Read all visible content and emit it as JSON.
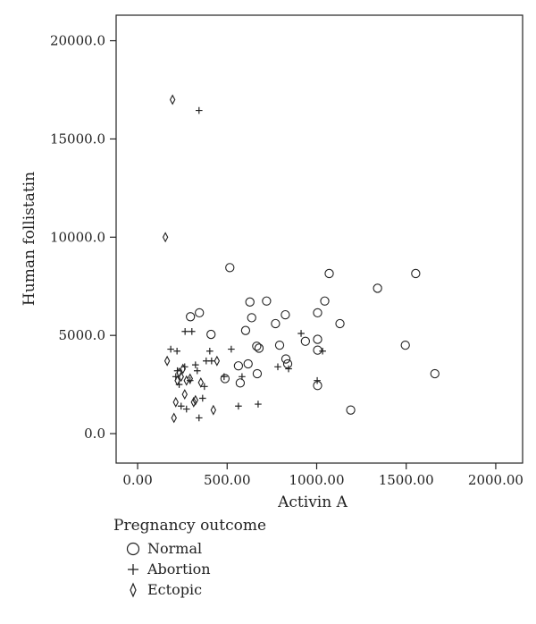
{
  "chart_data": {
    "type": "scatter",
    "xlabel": "Activin A",
    "ylabel": "Human follistatin",
    "xlim": [
      -120,
      2150
    ],
    "ylim": [
      -1500,
      21300
    ],
    "x_ticks": [
      {
        "value": 0,
        "label": "0.00"
      },
      {
        "value": 500,
        "label": "500.00"
      },
      {
        "value": 1000,
        "label": "1000.00"
      },
      {
        "value": 1500,
        "label": "1500.00"
      },
      {
        "value": 2000,
        "label": "2000.00"
      }
    ],
    "y_ticks": [
      {
        "value": 0,
        "label": "0.0"
      },
      {
        "value": 5000,
        "label": "5000.0"
      },
      {
        "value": 10000,
        "label": "10000.0"
      },
      {
        "value": 15000,
        "label": "15000.0"
      },
      {
        "value": 20000,
        "label": "20000.0"
      }
    ],
    "grid": false,
    "legend": {
      "title": "Pregnancy outcome",
      "position": "bottom-left"
    },
    "series": [
      {
        "name": "Normal",
        "marker": "circle",
        "points": [
          [
            295,
            5950
          ],
          [
            345,
            6150
          ],
          [
            410,
            5050
          ],
          [
            488,
            2800
          ],
          [
            515,
            8450
          ],
          [
            563,
            3450
          ],
          [
            573,
            2580
          ],
          [
            603,
            5250
          ],
          [
            617,
            3550
          ],
          [
            627,
            6700
          ],
          [
            637,
            5900
          ],
          [
            665,
            4450
          ],
          [
            668,
            3050
          ],
          [
            678,
            4350
          ],
          [
            720,
            6750
          ],
          [
            770,
            5600
          ],
          [
            793,
            4500
          ],
          [
            825,
            6050
          ],
          [
            828,
            3800
          ],
          [
            838,
            3550
          ],
          [
            937,
            4700
          ],
          [
            1005,
            6150
          ],
          [
            1005,
            4800
          ],
          [
            1005,
            4250
          ],
          [
            1005,
            2450
          ],
          [
            1045,
            6750
          ],
          [
            1070,
            8150
          ],
          [
            1130,
            5600
          ],
          [
            1190,
            1200
          ],
          [
            1340,
            7400
          ],
          [
            1495,
            4500
          ],
          [
            1553,
            8150
          ],
          [
            1660,
            3050
          ]
        ]
      },
      {
        "name": "Abortion",
        "marker": "plus",
        "points": [
          [
            343,
            16450
          ],
          [
            185,
            4300
          ],
          [
            220,
            4200
          ],
          [
            265,
            5200
          ],
          [
            303,
            5200
          ],
          [
            213,
            2900
          ],
          [
            222,
            3200
          ],
          [
            232,
            2500
          ],
          [
            243,
            1400
          ],
          [
            263,
            3400
          ],
          [
            273,
            1250
          ],
          [
            293,
            2700
          ],
          [
            323,
            3500
          ],
          [
            333,
            3200
          ],
          [
            343,
            800
          ],
          [
            363,
            1800
          ],
          [
            373,
            2400
          ],
          [
            383,
            3700
          ],
          [
            403,
            4200
          ],
          [
            413,
            3700
          ],
          [
            483,
            2900
          ],
          [
            523,
            4300
          ],
          [
            563,
            1400
          ],
          [
            583,
            2900
          ],
          [
            673,
            1500
          ],
          [
            783,
            3400
          ],
          [
            843,
            3300
          ],
          [
            913,
            5100
          ],
          [
            1003,
            2700
          ],
          [
            1033,
            4200
          ]
        ]
      },
      {
        "name": "Ectopic",
        "marker": "diamond",
        "points": [
          [
            195,
            17000
          ],
          [
            155,
            10000
          ],
          [
            165,
            3700
          ],
          [
            203,
            800
          ],
          [
            213,
            1600
          ],
          [
            222,
            2700
          ],
          [
            232,
            3100
          ],
          [
            243,
            2900
          ],
          [
            253,
            3300
          ],
          [
            263,
            2000
          ],
          [
            273,
            2700
          ],
          [
            293,
            2800
          ],
          [
            313,
            1600
          ],
          [
            323,
            1700
          ],
          [
            353,
            2600
          ],
          [
            423,
            1200
          ],
          [
            443,
            3700
          ]
        ]
      }
    ]
  }
}
